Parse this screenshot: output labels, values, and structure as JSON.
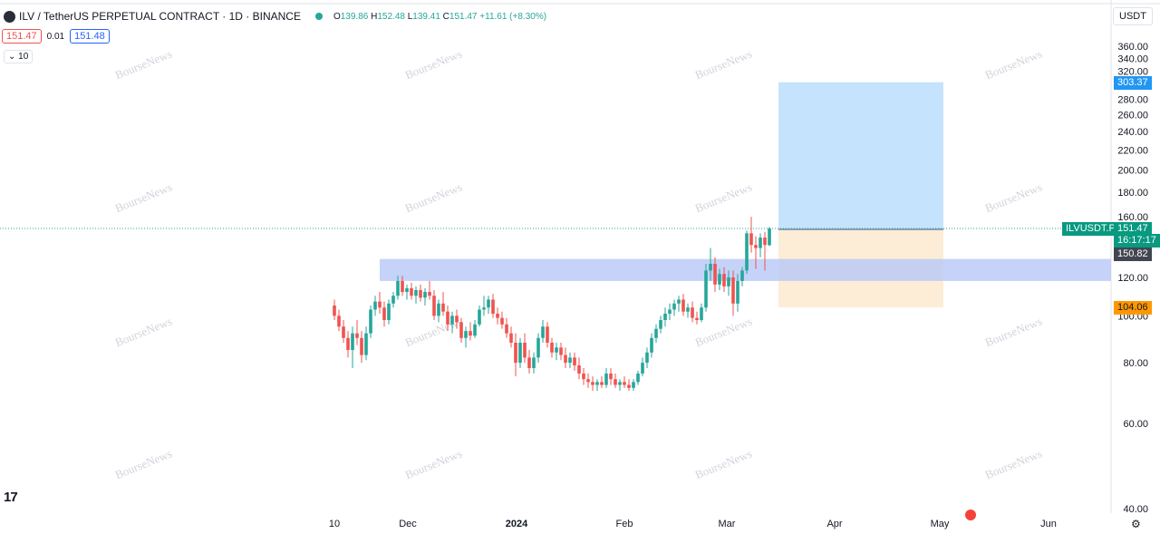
{
  "header": {
    "symbol_title": "ILV / TetherUS PERPETUAL CONTRACT · 1D · BINANCE",
    "open_label": "O",
    "open": "139.86",
    "high_label": "H",
    "high": "152.48",
    "low_label": "L",
    "low": "139.41",
    "close_label": "C",
    "close": "151.47",
    "change": "+11.61 (+8.30%)",
    "bid": "151.47",
    "spread": "0.01",
    "ask": "151.48",
    "volume_toggle": "10",
    "currency": "USDT"
  },
  "watermark": "BourseNews",
  "price_axis": {
    "ticks": [
      "360.00",
      "340.00",
      "320.00",
      "300.00",
      "280.00",
      "260.00",
      "240.00",
      "220.00",
      "200.00",
      "180.00",
      "160.00",
      "140.00",
      "120.00",
      "100.00",
      "80.00",
      "60.00",
      "40.00"
    ],
    "target_label": "303.37",
    "symbol_tag": "ILVUSDT.P",
    "last_price": "151.47",
    "countdown": "16:17:17",
    "entry_label": "150.82",
    "stop_label": "104.06"
  },
  "time_axis": {
    "labels": [
      "10",
      "Dec",
      "2024",
      "Feb",
      "Mar",
      "Apr",
      "May",
      "Jun"
    ]
  },
  "colors": {
    "up": "#26a69a",
    "down": "#ef5350",
    "target_zone": "#bbdefb",
    "stop_zone": "#fdebd3",
    "support_band": "#b7c8f7",
    "target_tag": "#2196f3",
    "last_tag": "#089981",
    "stop_tag": "#ff9800",
    "entry_tag": "#434651"
  },
  "chart_data": {
    "type": "candlestick",
    "y_scale": "log",
    "ylim": [
      40,
      360
    ],
    "support_zone": [
      118,
      131
    ],
    "long_position": {
      "entry": 150.82,
      "target": 303.37,
      "stop": 104.06
    },
    "candles": [
      {
        "o": 105,
        "h": 108,
        "l": 98,
        "c": 100
      },
      {
        "o": 100,
        "h": 103,
        "l": 93,
        "c": 95
      },
      {
        "o": 95,
        "h": 98,
        "l": 88,
        "c": 90
      },
      {
        "o": 90,
        "h": 93,
        "l": 82,
        "c": 85
      },
      {
        "o": 85,
        "h": 95,
        "l": 78,
        "c": 92
      },
      {
        "o": 92,
        "h": 98,
        "l": 87,
        "c": 90
      },
      {
        "o": 90,
        "h": 93,
        "l": 80,
        "c": 83
      },
      {
        "o": 83,
        "h": 95,
        "l": 81,
        "c": 92
      },
      {
        "o": 92,
        "h": 105,
        "l": 90,
        "c": 103
      },
      {
        "o": 103,
        "h": 110,
        "l": 100,
        "c": 107
      },
      {
        "o": 107,
        "h": 112,
        "l": 101,
        "c": 104
      },
      {
        "o": 104,
        "h": 107,
        "l": 95,
        "c": 98
      },
      {
        "o": 98,
        "h": 108,
        "l": 96,
        "c": 106
      },
      {
        "o": 106,
        "h": 112,
        "l": 104,
        "c": 110
      },
      {
        "o": 110,
        "h": 121,
        "l": 108,
        "c": 118
      },
      {
        "o": 118,
        "h": 121,
        "l": 110,
        "c": 112
      },
      {
        "o": 112,
        "h": 116,
        "l": 108,
        "c": 114
      },
      {
        "o": 114,
        "h": 117,
        "l": 108,
        "c": 110
      },
      {
        "o": 110,
        "h": 115,
        "l": 106,
        "c": 113
      },
      {
        "o": 113,
        "h": 116,
        "l": 107,
        "c": 109
      },
      {
        "o": 109,
        "h": 114,
        "l": 105,
        "c": 112
      },
      {
        "o": 112,
        "h": 118,
        "l": 108,
        "c": 110
      },
      {
        "o": 110,
        "h": 113,
        "l": 98,
        "c": 100
      },
      {
        "o": 100,
        "h": 108,
        "l": 97,
        "c": 106
      },
      {
        "o": 106,
        "h": 112,
        "l": 100,
        "c": 102
      },
      {
        "o": 102,
        "h": 105,
        "l": 93,
        "c": 96
      },
      {
        "o": 96,
        "h": 102,
        "l": 92,
        "c": 100
      },
      {
        "o": 100,
        "h": 103,
        "l": 94,
        "c": 97
      },
      {
        "o": 97,
        "h": 99,
        "l": 88,
        "c": 90
      },
      {
        "o": 90,
        "h": 95,
        "l": 86,
        "c": 93
      },
      {
        "o": 93,
        "h": 97,
        "l": 89,
        "c": 91
      },
      {
        "o": 91,
        "h": 98,
        "l": 90,
        "c": 96
      },
      {
        "o": 96,
        "h": 105,
        "l": 95,
        "c": 103
      },
      {
        "o": 103,
        "h": 110,
        "l": 100,
        "c": 104
      },
      {
        "o": 104,
        "h": 110,
        "l": 101,
        "c": 108
      },
      {
        "o": 108,
        "h": 111,
        "l": 99,
        "c": 101
      },
      {
        "o": 101,
        "h": 104,
        "l": 96,
        "c": 99
      },
      {
        "o": 99,
        "h": 102,
        "l": 94,
        "c": 96
      },
      {
        "o": 96,
        "h": 99,
        "l": 90,
        "c": 92
      },
      {
        "o": 92,
        "h": 95,
        "l": 86,
        "c": 88
      },
      {
        "o": 88,
        "h": 92,
        "l": 75,
        "c": 80
      },
      {
        "o": 80,
        "h": 90,
        "l": 78,
        "c": 88
      },
      {
        "o": 88,
        "h": 92,
        "l": 80,
        "c": 82
      },
      {
        "o": 82,
        "h": 85,
        "l": 76,
        "c": 78
      },
      {
        "o": 78,
        "h": 84,
        "l": 76,
        "c": 82
      },
      {
        "o": 82,
        "h": 92,
        "l": 80,
        "c": 90
      },
      {
        "o": 90,
        "h": 98,
        "l": 88,
        "c": 95
      },
      {
        "o": 95,
        "h": 97,
        "l": 86,
        "c": 88
      },
      {
        "o": 88,
        "h": 90,
        "l": 82,
        "c": 84
      },
      {
        "o": 84,
        "h": 88,
        "l": 81,
        "c": 86
      },
      {
        "o": 86,
        "h": 88,
        "l": 81,
        "c": 83
      },
      {
        "o": 83,
        "h": 86,
        "l": 78,
        "c": 80
      },
      {
        "o": 80,
        "h": 84,
        "l": 78,
        "c": 82
      },
      {
        "o": 82,
        "h": 84,
        "l": 77,
        "c": 79
      },
      {
        "o": 79,
        "h": 82,
        "l": 74,
        "c": 76
      },
      {
        "o": 76,
        "h": 78,
        "l": 72,
        "c": 74
      },
      {
        "o": 74,
        "h": 76,
        "l": 71,
        "c": 73
      },
      {
        "o": 73,
        "h": 75,
        "l": 70,
        "c": 72
      },
      {
        "o": 72,
        "h": 74,
        "l": 70,
        "c": 73
      },
      {
        "o": 73,
        "h": 75,
        "l": 71,
        "c": 72
      },
      {
        "o": 72,
        "h": 78,
        "l": 71,
        "c": 76
      },
      {
        "o": 76,
        "h": 78,
        "l": 72,
        "c": 74
      },
      {
        "o": 74,
        "h": 76,
        "l": 71,
        "c": 72
      },
      {
        "o": 72,
        "h": 74,
        "l": 70,
        "c": 73
      },
      {
        "o": 73,
        "h": 75,
        "l": 71,
        "c": 72
      },
      {
        "o": 72,
        "h": 74,
        "l": 70,
        "c": 71
      },
      {
        "o": 71,
        "h": 74,
        "l": 70,
        "c": 73
      },
      {
        "o": 73,
        "h": 77,
        "l": 72,
        "c": 76
      },
      {
        "o": 76,
        "h": 82,
        "l": 75,
        "c": 80
      },
      {
        "o": 80,
        "h": 86,
        "l": 78,
        "c": 84
      },
      {
        "o": 84,
        "h": 92,
        "l": 82,
        "c": 90
      },
      {
        "o": 90,
        "h": 96,
        "l": 88,
        "c": 94
      },
      {
        "o": 94,
        "h": 100,
        "l": 92,
        "c": 98
      },
      {
        "o": 98,
        "h": 104,
        "l": 95,
        "c": 101
      },
      {
        "o": 101,
        "h": 106,
        "l": 98,
        "c": 103
      },
      {
        "o": 103,
        "h": 108,
        "l": 100,
        "c": 106
      },
      {
        "o": 106,
        "h": 110,
        "l": 102,
        "c": 108
      },
      {
        "o": 108,
        "h": 111,
        "l": 100,
        "c": 102
      },
      {
        "o": 102,
        "h": 106,
        "l": 99,
        "c": 104
      },
      {
        "o": 104,
        "h": 107,
        "l": 97,
        "c": 99
      },
      {
        "o": 99,
        "h": 102,
        "l": 96,
        "c": 98
      },
      {
        "o": 98,
        "h": 106,
        "l": 97,
        "c": 104
      },
      {
        "o": 104,
        "h": 128,
        "l": 102,
        "c": 124
      },
      {
        "o": 124,
        "h": 138,
        "l": 118,
        "c": 128
      },
      {
        "o": 128,
        "h": 132,
        "l": 112,
        "c": 116
      },
      {
        "o": 116,
        "h": 125,
        "l": 113,
        "c": 122
      },
      {
        "o": 122,
        "h": 126,
        "l": 112,
        "c": 115
      },
      {
        "o": 115,
        "h": 124,
        "l": 110,
        "c": 120
      },
      {
        "o": 120,
        "h": 124,
        "l": 100,
        "c": 106
      },
      {
        "o": 106,
        "h": 122,
        "l": 102,
        "c": 118
      },
      {
        "o": 118,
        "h": 126,
        "l": 115,
        "c": 124
      },
      {
        "o": 124,
        "h": 150,
        "l": 122,
        "c": 148
      },
      {
        "o": 148,
        "h": 160,
        "l": 135,
        "c": 140
      },
      {
        "o": 140,
        "h": 146,
        "l": 125,
        "c": 138
      },
      {
        "o": 138,
        "h": 148,
        "l": 132,
        "c": 145
      },
      {
        "o": 145,
        "h": 149,
        "l": 124,
        "c": 140
      },
      {
        "o": 139.86,
        "h": 152.48,
        "l": 139.41,
        "c": 151.47
      }
    ]
  }
}
